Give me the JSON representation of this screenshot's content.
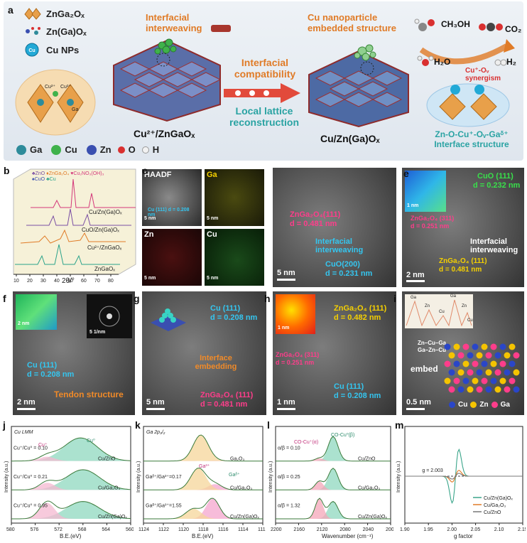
{
  "panel_a": {
    "label": "a",
    "legend": [
      "ZnGa₂Oₓ",
      "Zn(Ga)Oₓ",
      "Cu NPs"
    ],
    "cu_np_text": "Cu",
    "cluster_labels": [
      "Cu²⁺",
      "Cu²⁺",
      "Ga"
    ],
    "interfacial_interweaving": "Interfacial interweaving",
    "cu_nanoparticle": "Cu nanoparticle embedded structure",
    "interfacial_compatibility": "Interfacial compatibility",
    "local_lattice": "Local lattice reconstruction",
    "struct_left": "Cu²⁺/ZnGaOₓ",
    "struct_right": "Cu/Zn(Ga)Oₓ",
    "ch3oh": "CH₃OH",
    "co2": "CO₂",
    "h2o": "H₂O",
    "h2": "H₂",
    "synergism": "Cu⁺-Oᵥ synergism",
    "interface_structure": "Zn-O-Cu⁺-Oᵥ-Gaᵟ⁺ Interface structure",
    "atoms": [
      "Ga",
      "Cu",
      "Zn",
      "O",
      "H"
    ],
    "colors": {
      "ga": "#2e8b9a",
      "cu": "#3fb24b",
      "zn": "#3a4fb0",
      "o": "#d93030",
      "h": "#f2f2f2"
    }
  },
  "panel_b": {
    "label": "b",
    "legend": [
      "♣ZnO",
      "♦ZnGa₂O₄",
      "♥Cu₂NO₃(OH)₃",
      "♠CuO",
      "♣Cu"
    ],
    "samples": [
      "Cu/Zn(Ga)Oₓ",
      "CuO/Zn(Ga)Oₓ",
      "Cu²⁺/ZnGaOₓ",
      "ZnGaOₓ"
    ],
    "xlabel": "2θ/°",
    "xticks": [
      "10",
      "20",
      "30",
      "40",
      "50",
      "60",
      "70",
      "80"
    ]
  },
  "panel_c": {
    "label": "c",
    "tiles": [
      "HAADF",
      "Ga",
      "Zn",
      "Cu"
    ],
    "lattice": "Cu (111) d = 0.208 nm",
    "scale": "5 nm"
  },
  "panel_d": {
    "label": "d",
    "t1": "ZnGa₂O₄(111)",
    "t1d": "d = 0.481 nm",
    "t2": "Interfacial interweaving",
    "t3": "CuO(200)",
    "t3d": "d = 0.231 nm",
    "scale": "5 nm"
  },
  "panel_e": {
    "label": "e",
    "inset_scale": "1 nm",
    "t1": "CuO (111)",
    "t1d": "d = 0.232 nm",
    "t2": "ZnGa₂O₄ (311)",
    "t2d": "d = 0.251 nm",
    "t3": "Interfacial interweaving",
    "t4": "ZnGa₂O₄ (111)",
    "t4d": "d = 0.481 nm",
    "scale": "2 nm"
  },
  "panel_f": {
    "label": "f",
    "inset_scale": "2 nm",
    "fft_scale": "5 1/nm",
    "t1": "Cu (111)",
    "t1d": "d = 0.208 nm",
    "t2": "Tendon structure",
    "scale": "2 nm"
  },
  "panel_g": {
    "label": "g",
    "t1": "Cu (111)",
    "t1d": "d = 0.208 nm",
    "t2": "Interface embedding",
    "t3": "ZnGa₂O₄ (111)",
    "t3d": "d = 0.481 nm",
    "scale": "5 nm"
  },
  "panel_h": {
    "label": "h",
    "inset_scale": "1 nm",
    "t1": "ZnGa₂O₄ (111)",
    "t1d": "d = 0.482 nm",
    "t2": "ZnGa₂O₄ (311)",
    "t2d": "d = 0.251 nm",
    "t3": "Cu (111)",
    "t3d": "d = 0.208 nm",
    "scale": "1 nm"
  },
  "panel_i": {
    "label": "i",
    "profile_peaks": [
      "Ga",
      "Zn",
      "Cu",
      "Ga",
      "Zn",
      "Cu"
    ],
    "chain1": "Zn–Cu–Ga",
    "chain2": "Ga–Zn–Cu",
    "embed": "embed",
    "legend": [
      "Cu",
      "Zn",
      "Ga"
    ],
    "scale": "0.5 nm"
  },
  "chart_data": [
    {
      "panel": "j",
      "type": "line",
      "title": "Cu LMM",
      "peaks": [
        "Cu⁺",
        "Cu⁰"
      ],
      "series": [
        {
          "name": "Cu/ZnO",
          "ratio": "Cu⁺/Cu⁰ = 0.10"
        },
        {
          "name": "Cu/Ga₂O₃",
          "ratio": "Cu⁺/Cu⁰ = 0.21"
        },
        {
          "name": "Cu/Zn(Ga)Oₓ",
          "ratio": "Cu⁺/Cu⁰ = 0.95"
        }
      ],
      "xlabel": "B.E.(eV)",
      "ylabel": "Intensity (a.u.)",
      "xticks": [
        "580",
        "576",
        "572",
        "568",
        "564",
        "560"
      ],
      "xlim": [
        580,
        560
      ]
    },
    {
      "panel": "k",
      "type": "line",
      "title": "Ga 2p₃/₂",
      "peaks": [
        "Ga³⁺",
        "Gaᵟ⁺"
      ],
      "series": [
        {
          "name": "Ga₂O₃",
          "ratio": ""
        },
        {
          "name": "Cu/Ga₂O₃",
          "ratio": "Gaᵟ⁺/Ga³⁺=0.17"
        },
        {
          "name": "Cu/Zn(Ga)Oₓ",
          "ratio": "Gaᵟ⁺/Ga³⁺=1.55"
        }
      ],
      "xlabel": "B.E.(eV)",
      "ylabel": "Intensity (a.u.)",
      "xticks": [
        "1124",
        "1122",
        "1120",
        "1118",
        "1116",
        "1114",
        "1112"
      ],
      "xlim": [
        1124,
        1112
      ]
    },
    {
      "panel": "l",
      "type": "line",
      "peaks": [
        "CO-Cu⁺(α)",
        "CO-Cu⁰(β)"
      ],
      "series": [
        {
          "name": "Cu/ZnO",
          "ratio": "α/β = 0.10"
        },
        {
          "name": "Cu/Ga₂O₃",
          "ratio": "α/β = 0.25"
        },
        {
          "name": "Cu/Zn(Ga)Oₓ",
          "ratio": "α/β = 1.32"
        }
      ],
      "xlabel": "Wavenumber (cm⁻¹)",
      "ylabel": "Intensity (a.u.)",
      "xticks": [
        "2200",
        "2160",
        "2120",
        "2080",
        "2040",
        "2000"
      ],
      "xlim": [
        2200,
        2000
      ]
    },
    {
      "panel": "m",
      "type": "line",
      "annotation": "g = 2.003",
      "series": [
        {
          "name": "Cu/Zn(Ga)Oₓ",
          "color": "#3aa58a"
        },
        {
          "name": "Cu/Ga₂O₃",
          "color": "#e07b27"
        },
        {
          "name": "Cu/ZnO",
          "color": "#777777"
        }
      ],
      "xlabel": "g factor",
      "ylabel": "Intensity (a.u.)",
      "xticks": [
        "1.90",
        "1.95",
        "2.00",
        "2.05",
        "2.10",
        "2.15"
      ],
      "xlim": [
        1.9,
        2.15
      ]
    }
  ]
}
